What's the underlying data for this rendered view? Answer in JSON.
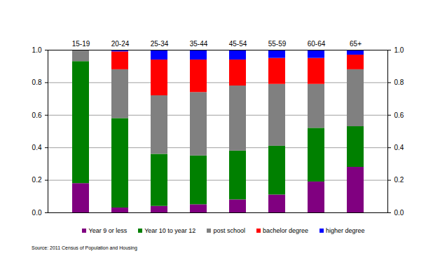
{
  "chart_data": {
    "type": "bar",
    "stacked": true,
    "grid": true,
    "legend": "bottom",
    "source": "Source: 2011 Census of Population and Housing",
    "categories": [
      "15-19",
      "20-24",
      "25-34",
      "35-44",
      "45-54",
      "55-59",
      "60-64",
      "65+"
    ],
    "series": [
      {
        "name": "Year 9 or less",
        "color": "#800080",
        "values": [
          0.18,
          0.03,
          0.04,
          0.05,
          0.08,
          0.11,
          0.19,
          0.28
        ]
      },
      {
        "name": "Year 10 to year 12",
        "color": "#008000",
        "values": [
          0.75,
          0.55,
          0.32,
          0.3,
          0.3,
          0.3,
          0.33,
          0.25
        ]
      },
      {
        "name": "post school",
        "color": "#808080",
        "values": [
          0.07,
          0.3,
          0.36,
          0.39,
          0.4,
          0.38,
          0.27,
          0.35
        ]
      },
      {
        "name": "bachelor degree",
        "color": "#ff0000",
        "values": [
          0,
          0.11,
          0.22,
          0.2,
          0.16,
          0.16,
          0.16,
          0.09
        ]
      },
      {
        "name": "higher degree",
        "color": "#0000ff",
        "values": [
          0,
          0.01,
          0.06,
          0.06,
          0.06,
          0.05,
          0.05,
          0.03
        ]
      }
    ],
    "ylim": [
      0,
      1
    ],
    "yticks": [
      {
        "value": 0,
        "label": "0.0"
      },
      0.2,
      0.4,
      0.6,
      0.8,
      {
        "value": 1,
        "label": "1.0"
      }
    ]
  }
}
